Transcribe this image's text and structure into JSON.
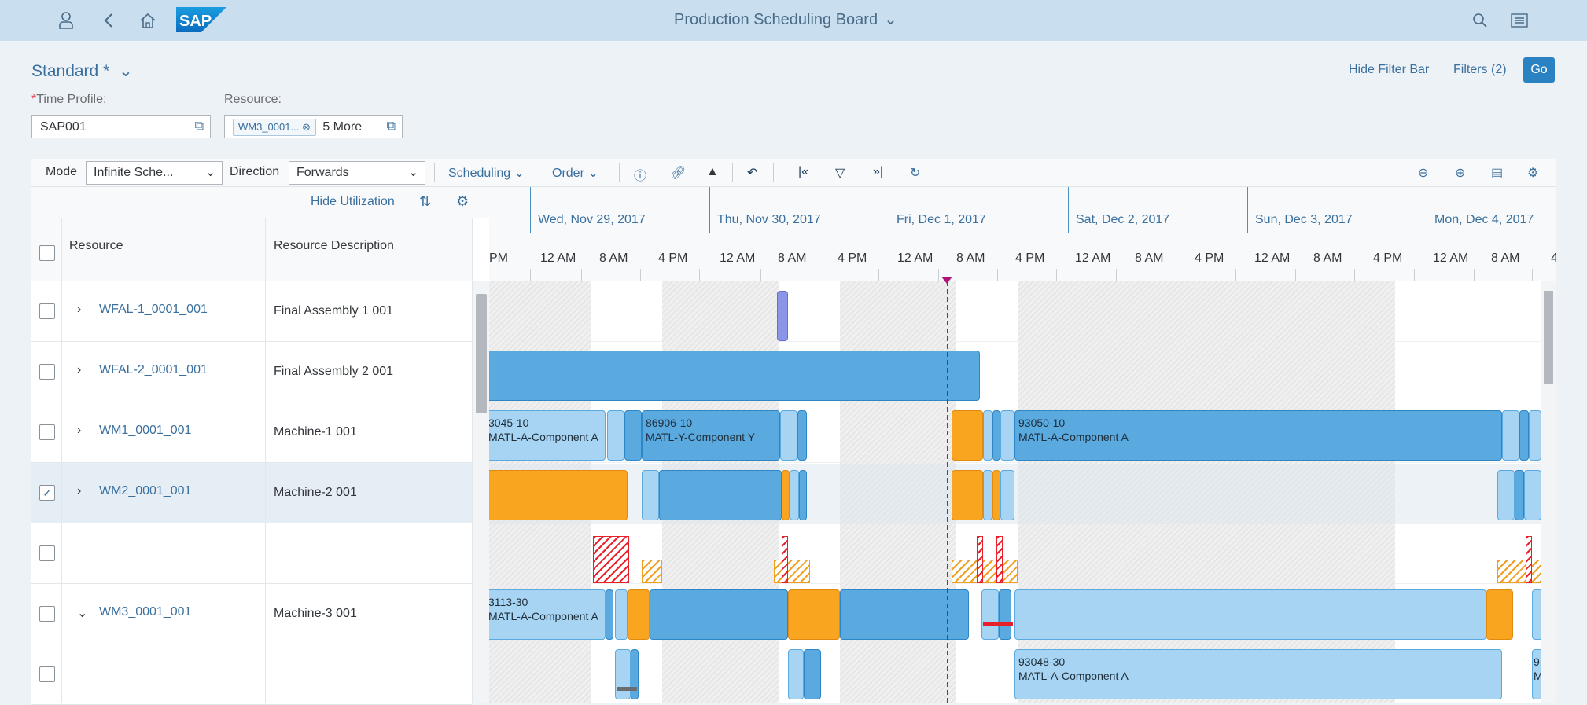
{
  "shell": {
    "title": "Production Scheduling Board",
    "logo": "SAP",
    "icons": [
      "user-icon",
      "back-icon",
      "home-icon",
      "search-icon",
      "menu-icon"
    ]
  },
  "filterbar": {
    "variant": "Standard *",
    "hide_filter_bar": "Hide Filter Bar",
    "filters": "Filters (2)",
    "go": "Go",
    "time_profile_label": "Time Profile:",
    "time_profile_value": "SAP001",
    "resource_label": "Resource:",
    "resource_token": "WM3_0001...",
    "resource_more": "5 More"
  },
  "toolbar": {
    "mode_label": "Mode",
    "mode_value": "Infinite Sche...",
    "direction_label": "Direction",
    "direction_value": "Forwards",
    "scheduling": "Scheduling",
    "order": "Order"
  },
  "grid": {
    "hide_utilization": "Hide Utilization",
    "col_resource": "Resource",
    "col_description": "Resource Description",
    "rows": [
      {
        "resource": "WFAL-1_0001_001",
        "description": "Final Assembly 1 001",
        "expander": "›",
        "checked": ""
      },
      {
        "resource": "WFAL-2_0001_001",
        "description": "Final Assembly 2 001",
        "expander": "›",
        "checked": ""
      },
      {
        "resource": "WM1_0001_001",
        "description": "Machine-1 001",
        "expander": "›",
        "checked": ""
      },
      {
        "resource": "WM2_0001_001",
        "description": "Machine-2 001",
        "expander": "›",
        "checked": "✓"
      },
      {
        "resource": "",
        "description": "",
        "expander": "",
        "checked": ""
      },
      {
        "resource": "WM3_0001_001",
        "description": "Machine-3 001",
        "expander": "⌄",
        "checked": ""
      },
      {
        "resource": "",
        "description": "",
        "expander": "",
        "checked": ""
      }
    ]
  },
  "timeline": {
    "days": [
      "Wed, Nov 29, 2017",
      "Thu, Nov 30, 2017",
      "Fri, Dec 1, 2017",
      "Sat, Dec 2, 2017",
      "Sun, Dec 3, 2017",
      "Mon, Dec 4, 2017"
    ],
    "hours": [
      "PM",
      "12 AM",
      "8 AM",
      "4 PM",
      "12 AM",
      "8 AM",
      "4 PM",
      "12 AM",
      "8 AM",
      "4 PM",
      "12 AM",
      "8 AM",
      "4 PM",
      "12 AM",
      "8 AM",
      "4 PM",
      "12 AM",
      "8 AM",
      "4"
    ]
  },
  "bars": {
    "b1_order": "3045-10",
    "b1_mat": "MATL-A-Component A",
    "b2_order": "86906-10",
    "b2_mat": "MATL-Y-Component Y",
    "b3_order": "93050-10",
    "b3_mat": "MATL-A-Component A",
    "b4_order": "3113-30",
    "b4_mat": "MATL-A-Component A",
    "b5_order": "93048-30",
    "b5_mat": "MATL-A-Component A",
    "b6_order": "9",
    "b6_mat": "M"
  }
}
